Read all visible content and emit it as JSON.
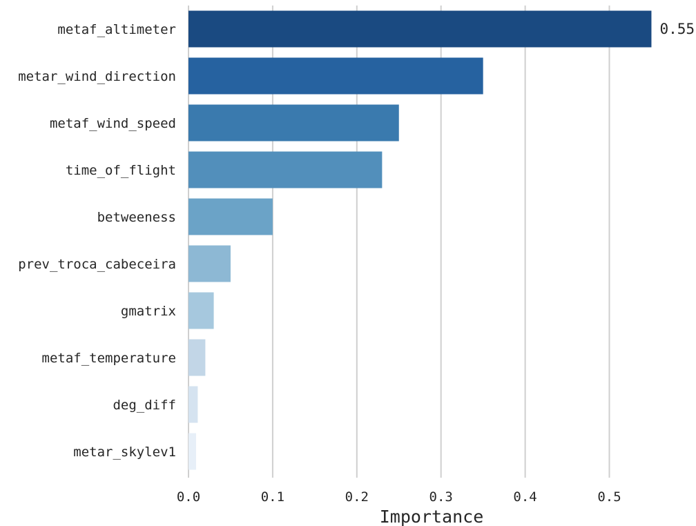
{
  "chart_data": {
    "type": "bar",
    "orientation": "horizontal",
    "categories": [
      "metaf_altimeter",
      "metar_wind_direction",
      "metaf_wind_speed",
      "time_of_flight",
      "betweeness",
      "prev_troca_cabeceira",
      "gmatrix",
      "metaf_temperature",
      "deg_diff",
      "metar_skylev1"
    ],
    "values": [
      0.55,
      0.35,
      0.25,
      0.23,
      0.1,
      0.05,
      0.03,
      0.02,
      0.011,
      0.009
    ],
    "colors": [
      "#1a4a81",
      "#2662a0",
      "#3a7aae",
      "#528fbb",
      "#6ba3c7",
      "#8db8d4",
      "#a6c8de",
      "#c2d6e7",
      "#d5e3f0",
      "#e7eff8"
    ],
    "value_label": "0.55",
    "xlabel": "Importance",
    "ylabel": "",
    "xlim": [
      0,
      0.55
    ],
    "xticks": [
      0.0,
      0.1,
      0.2,
      0.3,
      0.4,
      0.5
    ],
    "xtick_labels": [
      "0.0",
      "0.1",
      "0.2",
      "0.3",
      "0.4",
      "0.5"
    ],
    "grid": "vertical"
  }
}
